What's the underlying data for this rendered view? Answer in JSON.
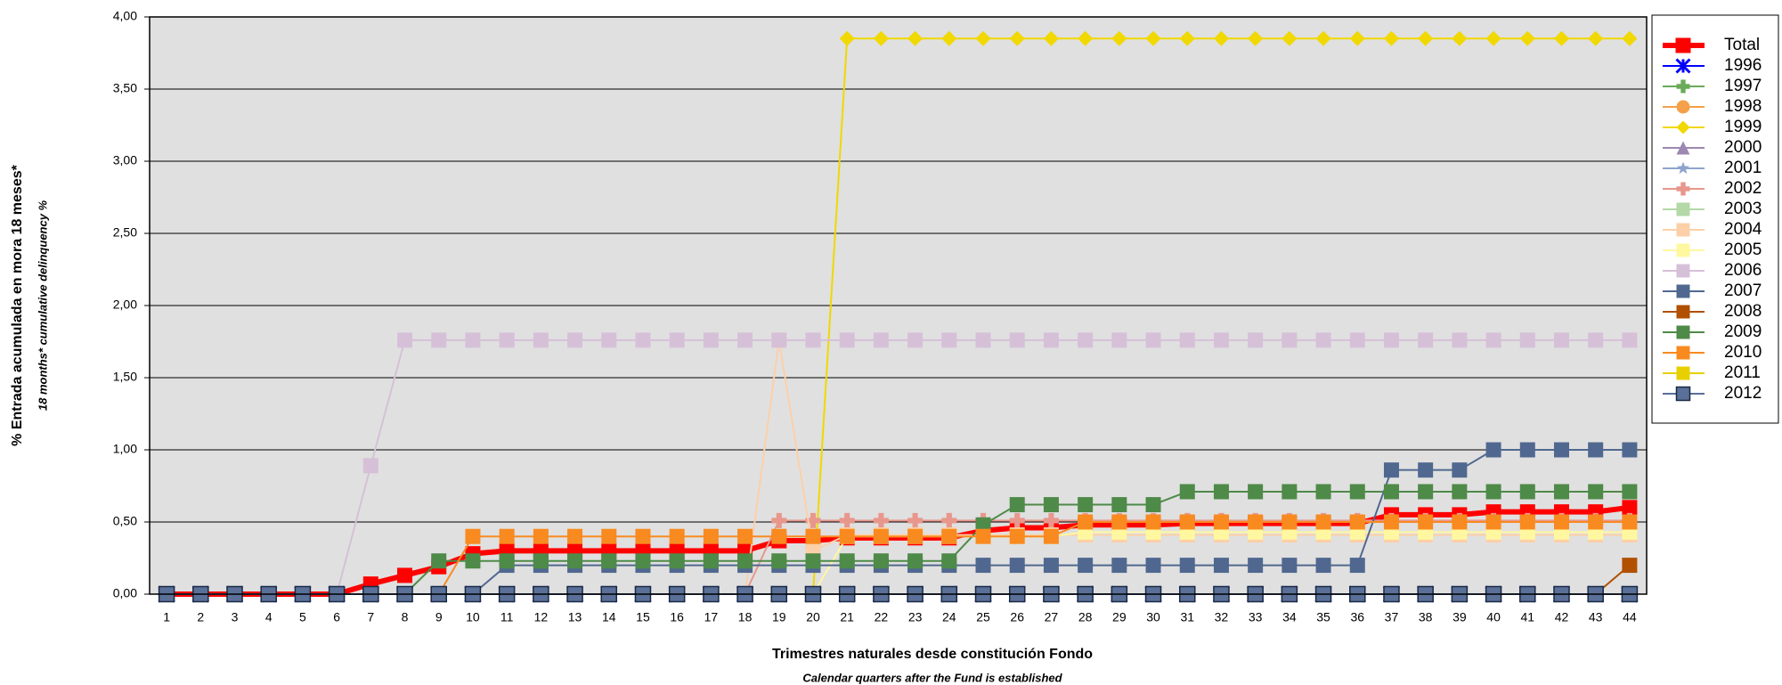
{
  "chart_data": {
    "type": "line",
    "y_title": "% Entrada acumulada en mora 18 meses*",
    "y_subtitle": "18 months* cumulative delinquency %",
    "x_title": "Trimestres naturales desde constitución Fondo",
    "x_subtitle": "Calendar quarters after the Fund is established",
    "categories": [
      1,
      2,
      3,
      4,
      5,
      6,
      7,
      8,
      9,
      10,
      11,
      12,
      13,
      14,
      15,
      16,
      17,
      18,
      19,
      20,
      21,
      22,
      23,
      24,
      25,
      26,
      27,
      28,
      29,
      30,
      31,
      32,
      33,
      34,
      35,
      36,
      37,
      38,
      39,
      40,
      41,
      42,
      43,
      44
    ],
    "ylim": [
      0,
      4
    ],
    "yticks": [
      {
        "value": 0,
        "label": "0,00"
      },
      {
        "value": 0.5,
        "label": "0,50"
      },
      {
        "value": 1,
        "label": "1,00"
      },
      {
        "value": 1.5,
        "label": "1,50"
      },
      {
        "value": 2,
        "label": "2,00"
      },
      {
        "value": 2.5,
        "label": "2,50"
      },
      {
        "value": 3,
        "label": "3,00"
      },
      {
        "value": 3.5,
        "label": "3,50"
      },
      {
        "value": 4,
        "label": "4,00"
      }
    ],
    "grid": true,
    "legend": "right",
    "series": [
      {
        "name": "Total",
        "color": "#ff0000",
        "marker": "square",
        "linewidth": 6,
        "values": [
          0,
          0,
          0,
          0,
          0,
          0,
          0.07,
          0.13,
          0.19,
          0.28,
          0.3,
          0.3,
          0.3,
          0.3,
          0.3,
          0.3,
          0.3,
          0.3,
          0.37,
          0.37,
          0.39,
          0.39,
          0.39,
          0.39,
          0.44,
          0.46,
          0.46,
          0.48,
          0.48,
          0.48,
          0.49,
          0.49,
          0.49,
          0.49,
          0.49,
          0.49,
          0.55,
          0.55,
          0.55,
          0.57,
          0.57,
          0.57,
          0.57,
          0.6
        ]
      },
      {
        "name": "1996",
        "color": "#0000ff",
        "marker": "x",
        "values": [
          0,
          0,
          0,
          0,
          0,
          0,
          0,
          0,
          0,
          0,
          0,
          0,
          0,
          0,
          0,
          0,
          0,
          0,
          0,
          0,
          0,
          0,
          0,
          0,
          0,
          0,
          0,
          0,
          0,
          0,
          0,
          0,
          0,
          0,
          0,
          0,
          0,
          0,
          0,
          0,
          0,
          0,
          0,
          0
        ]
      },
      {
        "name": "1997",
        "color": "#6aaa5a",
        "marker": "plus",
        "values": [
          0,
          0,
          0,
          0,
          0,
          0,
          0,
          0,
          0,
          0,
          0,
          0,
          0,
          0,
          0,
          0,
          0,
          0,
          0,
          0,
          0,
          0,
          0,
          0,
          0,
          0,
          0,
          0,
          0,
          0,
          0,
          0,
          0,
          0,
          0,
          0,
          0,
          0,
          0,
          0,
          0,
          0,
          0,
          0
        ]
      },
      {
        "name": "1998",
        "color": "#f5a04a",
        "marker": "circle",
        "values": [
          0,
          0,
          0,
          0,
          0,
          0,
          0,
          0,
          0,
          0,
          0,
          0,
          0,
          0,
          0,
          0,
          0,
          0,
          0,
          0,
          0,
          0,
          0,
          0,
          0,
          0,
          0,
          0,
          0,
          0,
          0,
          0,
          0,
          0,
          0,
          0,
          0,
          0,
          0,
          0,
          0,
          0,
          0,
          0
        ]
      },
      {
        "name": "1999",
        "color": "#f0d800",
        "marker": "diamond",
        "values": [
          0,
          0,
          0,
          0,
          0,
          0,
          0,
          0,
          0,
          0,
          0,
          0,
          0,
          0,
          0,
          0,
          0,
          0,
          0,
          0,
          3.85,
          3.85,
          3.85,
          3.85,
          3.85,
          3.85,
          3.85,
          3.85,
          3.85,
          3.85,
          3.85,
          3.85,
          3.85,
          3.85,
          3.85,
          3.85,
          3.85,
          3.85,
          3.85,
          3.85,
          3.85,
          3.85,
          3.85,
          3.85
        ]
      },
      {
        "name": "2000",
        "color": "#9c88b0",
        "marker": "triangle",
        "values": [
          0,
          0,
          0,
          0,
          0,
          0,
          0,
          0,
          0,
          0,
          0,
          0,
          0,
          0,
          0,
          0,
          0,
          0,
          0,
          0,
          0,
          0,
          0,
          0,
          0,
          0,
          0,
          0,
          0,
          0,
          0,
          0,
          0,
          0,
          0,
          0,
          0,
          0,
          0,
          0,
          0,
          0,
          0,
          0
        ]
      },
      {
        "name": "2001",
        "color": "#8ea4cc",
        "marker": "star",
        "values": [
          0,
          0,
          0,
          0,
          0,
          0,
          0,
          0,
          0,
          0,
          0,
          0,
          0,
          0,
          0,
          0,
          0,
          0,
          0,
          0,
          0,
          0,
          0,
          0,
          0,
          0,
          0,
          0,
          0,
          0,
          0,
          0,
          0,
          0,
          0,
          0,
          0,
          0,
          0,
          0,
          0,
          0,
          0,
          0
        ]
      },
      {
        "name": "2002",
        "color": "#e8978c",
        "marker": "plus",
        "values": [
          0,
          0,
          0,
          0,
          0,
          0,
          0,
          0,
          0,
          0,
          0,
          0,
          0,
          0,
          0,
          0,
          0,
          0,
          0.51,
          0.51,
          0.51,
          0.51,
          0.51,
          0.51,
          0.51,
          0.51,
          0.51,
          0.51,
          0.51,
          0.51,
          0.51,
          0.51,
          0.51,
          0.51,
          0.51,
          0.51,
          0.51,
          0.51,
          0.51,
          0.51,
          0.51,
          0.51,
          0.51,
          0.51
        ]
      },
      {
        "name": "2003",
        "color": "#b4d8a8",
        "marker": "square",
        "values": [
          0,
          0,
          0,
          0,
          0,
          0,
          0,
          0,
          0,
          0,
          0,
          0,
          0,
          0,
          0,
          0,
          0,
          0,
          0,
          0,
          0,
          0,
          0,
          0,
          0,
          0,
          0,
          0,
          0,
          0,
          0,
          0,
          0,
          0,
          0,
          0,
          0,
          0,
          0,
          0,
          0,
          0,
          0,
          0
        ]
      },
      {
        "name": "2004",
        "color": "#fcd0a8",
        "marker": "square",
        "values": [
          0,
          0,
          0,
          0,
          0,
          0,
          0,
          0,
          0,
          0,
          0,
          0,
          0,
          0,
          0,
          0,
          0,
          0,
          1.76,
          0.3,
          0.41,
          0.41,
          0.41,
          0.41,
          0.41,
          0.41,
          0.41,
          0.41,
          0.41,
          0.41,
          0.41,
          0.41,
          0.41,
          0.41,
          0.41,
          0.41,
          0.41,
          0.41,
          0.41,
          0.41,
          0.41,
          0.41,
          0.41,
          0.41
        ]
      },
      {
        "name": "2005",
        "color": "#fff8a0",
        "marker": "square",
        "values": [
          0,
          0,
          0,
          0,
          0,
          0,
          0,
          0,
          0,
          0,
          0,
          0,
          0,
          0,
          0,
          0,
          0,
          0,
          0,
          0,
          0.4,
          0.4,
          0.4,
          0.4,
          0.4,
          0.4,
          0.4,
          0.43,
          0.43,
          0.43,
          0.43,
          0.43,
          0.43,
          0.43,
          0.43,
          0.43,
          0.43,
          0.43,
          0.43,
          0.43,
          0.43,
          0.43,
          0.43,
          0.43
        ]
      },
      {
        "name": "2006",
        "color": "#d6c0d8",
        "marker": "square",
        "values": [
          0,
          0,
          0,
          0,
          0,
          0,
          0.89,
          1.76,
          1.76,
          1.76,
          1.76,
          1.76,
          1.76,
          1.76,
          1.76,
          1.76,
          1.76,
          1.76,
          1.76,
          1.76,
          1.76,
          1.76,
          1.76,
          1.76,
          1.76,
          1.76,
          1.76,
          1.76,
          1.76,
          1.76,
          1.76,
          1.76,
          1.76,
          1.76,
          1.76,
          1.76,
          1.76,
          1.76,
          1.76,
          1.76,
          1.76,
          1.76,
          1.76,
          1.76
        ]
      },
      {
        "name": "2007",
        "color": "#506890",
        "marker": "square",
        "values": [
          0,
          0,
          0,
          0,
          0,
          0,
          0,
          0,
          0,
          0,
          0.2,
          0.2,
          0.2,
          0.2,
          0.2,
          0.2,
          0.2,
          0.2,
          0.2,
          0.2,
          0.2,
          0.2,
          0.2,
          0.2,
          0.2,
          0.2,
          0.2,
          0.2,
          0.2,
          0.2,
          0.2,
          0.2,
          0.2,
          0.2,
          0.2,
          0.2,
          0.86,
          0.86,
          0.86,
          1,
          1,
          1,
          1,
          1
        ]
      },
      {
        "name": "2008",
        "color": "#b05000",
        "marker": "square",
        "values": [
          0,
          0,
          0,
          0,
          0,
          0,
          0,
          0,
          0,
          0,
          0,
          0,
          0,
          0,
          0,
          0,
          0,
          0,
          0,
          0,
          0,
          0,
          0,
          0,
          0,
          0,
          0,
          0,
          0,
          0,
          0,
          0,
          0,
          0,
          0,
          0,
          0,
          0,
          0,
          0,
          0,
          0,
          0,
          0.2
        ]
      },
      {
        "name": "2009",
        "color": "#4e8a48",
        "marker": "square",
        "values": [
          0,
          0,
          0,
          0,
          0,
          0,
          0,
          0,
          0.23,
          0.23,
          0.23,
          0.23,
          0.23,
          0.23,
          0.23,
          0.23,
          0.23,
          0.23,
          0.23,
          0.23,
          0.23,
          0.23,
          0.23,
          0.23,
          0.48,
          0.62,
          0.62,
          0.62,
          0.62,
          0.62,
          0.71,
          0.71,
          0.71,
          0.71,
          0.71,
          0.71,
          0.71,
          0.71,
          0.71,
          0.71,
          0.71,
          0.71,
          0.71,
          0.71
        ]
      },
      {
        "name": "2010",
        "color": "#f88a20",
        "marker": "square",
        "values": [
          0,
          0,
          0,
          0,
          0,
          0,
          0,
          0,
          0,
          0.4,
          0.4,
          0.4,
          0.4,
          0.4,
          0.4,
          0.4,
          0.4,
          0.4,
          0.4,
          0.4,
          0.4,
          0.4,
          0.4,
          0.4,
          0.4,
          0.4,
          0.4,
          0.5,
          0.5,
          0.5,
          0.5,
          0.5,
          0.5,
          0.5,
          0.5,
          0.5,
          0.5,
          0.5,
          0.5,
          0.5,
          0.5,
          0.5,
          0.5,
          0.5
        ]
      },
      {
        "name": "2011",
        "color": "#e8d000",
        "marker": "square",
        "values": [
          0,
          0,
          0,
          0,
          0,
          0,
          0,
          0,
          0,
          0,
          0,
          0,
          0,
          0,
          0,
          0,
          0,
          0,
          0,
          0,
          0,
          0,
          0,
          0,
          0,
          0,
          0,
          0,
          0,
          0,
          0,
          0,
          0,
          0,
          0,
          0,
          0,
          0,
          0,
          0,
          0,
          0,
          0,
          0
        ]
      },
      {
        "name": "2012",
        "color": "#5a7098",
        "edgecolor": "#1a2a44",
        "marker": "square",
        "values": [
          0,
          0,
          0,
          0,
          0,
          0,
          0,
          0,
          0,
          0,
          0,
          0,
          0,
          0,
          0,
          0,
          0,
          0,
          0,
          0,
          0,
          0,
          0,
          0,
          0,
          0,
          0,
          0,
          0,
          0,
          0,
          0,
          0,
          0,
          0,
          0,
          0,
          0,
          0,
          0,
          0,
          0,
          0,
          0
        ]
      }
    ]
  }
}
